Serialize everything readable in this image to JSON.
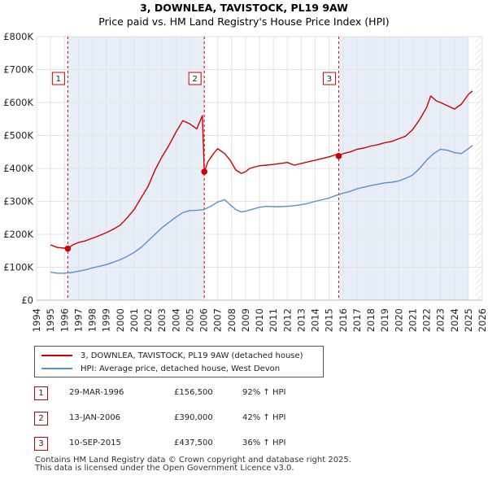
{
  "header": {
    "title": "3, DOWNLEA, TAVISTOCK, PL19 9AW",
    "subtitle": "Price paid vs. HM Land Registry's House Price Index (HPI)"
  },
  "legend": {
    "property_label": "3, DOWNLEA, TAVISTOCK, PL19 9AW (detached house)",
    "hpi_label": "HPI: Average price, detached house, West Devon"
  },
  "sales": [
    {
      "num": "1",
      "date": "29-MAR-1996",
      "price": "£156,500",
      "hpi_change": "92% ↑ HPI"
    },
    {
      "num": "2",
      "date": "13-JAN-2006",
      "price": "£390,000",
      "hpi_change": "42% ↑ HPI"
    },
    {
      "num": "3",
      "date": "10-SEP-2015",
      "price": "£437,500",
      "hpi_change": "36% ↑ HPI"
    }
  ],
  "footer": {
    "line1": "Contains HM Land Registry data © Crown copyright and database right 2025.",
    "line2": "This data is licensed under the Open Government Licence v3.0."
  },
  "colors": {
    "property": "#cc0000",
    "hpi": "#5b8fcf",
    "shade": "#e8eef8",
    "grid": "#e2e2e2"
  },
  "chart_data": {
    "type": "line",
    "title": "3, DOWNLEA, TAVISTOCK, PL19 9AW",
    "subtitle": "Price paid vs. HM Land Registry's House Price Index (HPI)",
    "xlabel": "",
    "ylabel": "",
    "xlim": [
      1994,
      2026
    ],
    "ylim": [
      0,
      800000
    ],
    "y_ticks": [
      0,
      100000,
      200000,
      300000,
      400000,
      500000,
      600000,
      700000,
      800000
    ],
    "y_tick_labels": [
      "£0",
      "£100K",
      "£200K",
      "£300K",
      "£400K",
      "£500K",
      "£600K",
      "£700K",
      "£800K"
    ],
    "x_ticks": [
      1994,
      1995,
      1996,
      1997,
      1998,
      1999,
      2000,
      2001,
      2002,
      2003,
      2004,
      2005,
      2006,
      2007,
      2008,
      2009,
      2010,
      2011,
      2012,
      2013,
      2014,
      2015,
      2016,
      2017,
      2018,
      2019,
      2020,
      2021,
      2022,
      2023,
      2024,
      2025,
      2026
    ],
    "grid": true,
    "data_range": [
      1995.0,
      2025.5
    ],
    "shaded_regions": [
      [
        1996.24,
        2006.04
      ],
      [
        2015.69,
        2025.0
      ]
    ],
    "series": [
      {
        "name": "3, DOWNLEA, TAVISTOCK, PL19 9AW (detached house)",
        "color": "#cc0000",
        "x": [
          1995.0,
          1995.5,
          1996.0,
          1996.24,
          1996.6,
          1997.0,
          1997.5,
          1998.0,
          1998.5,
          1999.0,
          1999.5,
          2000.0,
          2000.5,
          2001.0,
          2001.5,
          2002.0,
          2002.5,
          2003.0,
          2003.5,
          2004.0,
          2004.5,
          2005.0,
          2005.5,
          2005.9,
          2006.04,
          2006.3,
          2006.7,
          2007.0,
          2007.5,
          2007.9,
          2008.3,
          2008.7,
          2009.0,
          2009.3,
          2009.7,
          2010.0,
          2010.5,
          2011.0,
          2011.5,
          2012.0,
          2012.5,
          2013.0,
          2013.5,
          2014.0,
          2014.5,
          2015.0,
          2015.5,
          2015.69,
          2016.0,
          2016.5,
          2017.0,
          2017.5,
          2018.0,
          2018.5,
          2019.0,
          2019.5,
          2020.0,
          2020.5,
          2021.0,
          2021.5,
          2022.0,
          2022.3,
          2022.7,
          2023.0,
          2023.5,
          2024.0,
          2024.5,
          2025.0,
          2025.3
        ],
        "values": [
          168000,
          160000,
          158000,
          156500,
          168000,
          175000,
          180000,
          188000,
          196000,
          205000,
          215000,
          228000,
          250000,
          275000,
          310000,
          345000,
          395000,
          435000,
          470000,
          510000,
          545000,
          535000,
          520000,
          560000,
          390000,
          420000,
          445000,
          460000,
          445000,
          425000,
          395000,
          385000,
          390000,
          400000,
          405000,
          408000,
          410000,
          412000,
          415000,
          418000,
          410000,
          415000,
          420000,
          425000,
          430000,
          435000,
          442000,
          437500,
          445000,
          450000,
          458000,
          462000,
          468000,
          472000,
          478000,
          482000,
          490000,
          498000,
          518000,
          548000,
          585000,
          620000,
          605000,
          600000,
          590000,
          580000,
          595000,
          625000,
          635000
        ]
      },
      {
        "name": "HPI: Average price, detached house, West Devon",
        "color": "#5b8fcf",
        "x": [
          1995.0,
          1995.5,
          1996.0,
          1996.5,
          1997.0,
          1997.5,
          1998.0,
          1998.5,
          1999.0,
          1999.5,
          2000.0,
          2000.5,
          2001.0,
          2001.5,
          2002.0,
          2002.5,
          2003.0,
          2003.5,
          2004.0,
          2004.5,
          2005.0,
          2005.5,
          2006.0,
          2006.5,
          2007.0,
          2007.5,
          2007.9,
          2008.3,
          2008.7,
          2009.0,
          2009.5,
          2010.0,
          2010.5,
          2011.0,
          2011.5,
          2012.0,
          2012.5,
          2013.0,
          2013.5,
          2014.0,
          2014.5,
          2015.0,
          2015.5,
          2016.0,
          2016.5,
          2017.0,
          2017.5,
          2018.0,
          2018.5,
          2019.0,
          2019.5,
          2020.0,
          2020.5,
          2021.0,
          2021.5,
          2022.0,
          2022.5,
          2023.0,
          2023.5,
          2024.0,
          2024.5,
          2025.0,
          2025.3
        ],
        "values": [
          85000,
          82000,
          82000,
          84000,
          88000,
          92000,
          98000,
          103000,
          108000,
          115000,
          123000,
          133000,
          145000,
          160000,
          180000,
          200000,
          220000,
          236000,
          252000,
          266000,
          272000,
          273000,
          275000,
          285000,
          298000,
          305000,
          290000,
          275000,
          268000,
          270000,
          276000,
          282000,
          285000,
          284000,
          284000,
          285000,
          287000,
          290000,
          294000,
          300000,
          305000,
          310000,
          318000,
          325000,
          330000,
          338000,
          343000,
          348000,
          352000,
          356000,
          358000,
          362000,
          370000,
          380000,
          400000,
          425000,
          445000,
          458000,
          455000,
          448000,
          445000,
          460000,
          470000
        ]
      }
    ],
    "annotations": [
      {
        "label": "1",
        "x": 1996.24,
        "value": 156500
      },
      {
        "label": "2",
        "x": 2006.04,
        "value": 390000
      },
      {
        "label": "3",
        "x": 2015.69,
        "value": 437500
      }
    ]
  }
}
